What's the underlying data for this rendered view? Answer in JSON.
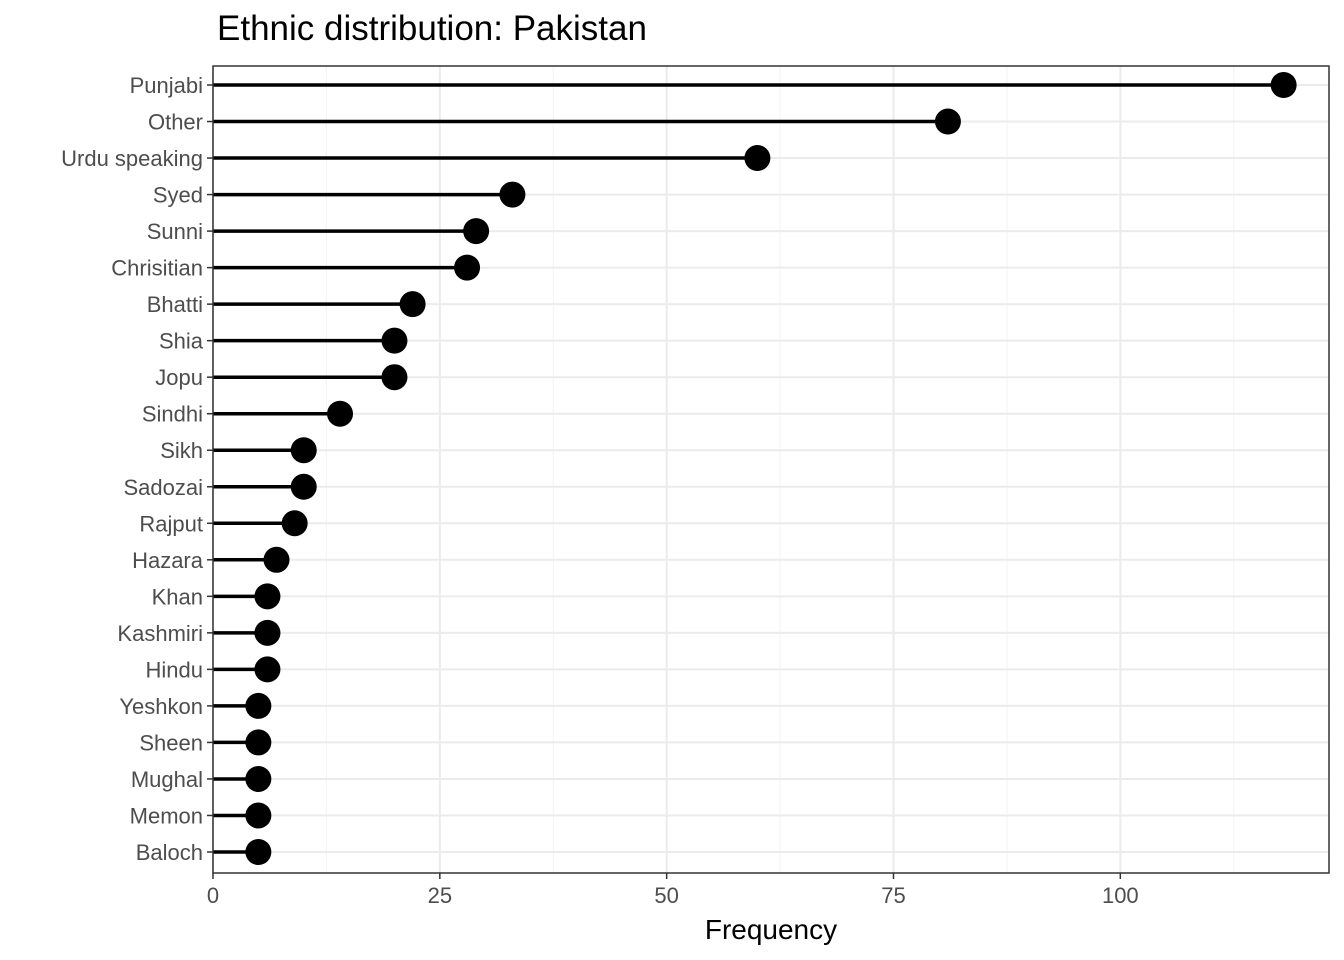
{
  "chart_data": {
    "type": "lollipop",
    "title": "Ethnic distribution: Pakistan",
    "xlabel": "Frequency",
    "ylabel": "",
    "xlim": [
      0,
      123
    ],
    "x_ticks": [
      0,
      25,
      50,
      75,
      100
    ],
    "x_tick_labels": [
      "0",
      "25",
      "50",
      "75",
      "100"
    ],
    "grid": true,
    "legend": "none",
    "categories": [
      "Punjabi",
      "Other",
      "Urdu speaking",
      "Syed",
      "Sunni",
      "Chrisitian",
      "Bhatti",
      "Shia",
      "Jopu",
      "Sindhi",
      "Sikh",
      "Sadozai",
      "Rajput",
      "Hazara",
      "Khan",
      "Kashmiri",
      "Hindu",
      "Yeshkon",
      "Sheen",
      "Mughal",
      "Memon",
      "Baloch"
    ],
    "values": [
      118,
      81,
      60,
      33,
      29,
      28,
      22,
      20,
      20,
      14,
      10,
      10,
      9,
      7,
      6,
      6,
      6,
      5,
      5,
      5,
      5,
      5
    ],
    "colors": {
      "mark": "#000000",
      "grid_major": "#ebebeb",
      "grid_minor": "#f5f5f5",
      "panel_border": "#333333",
      "tick_label": "#4d4d4d"
    }
  }
}
